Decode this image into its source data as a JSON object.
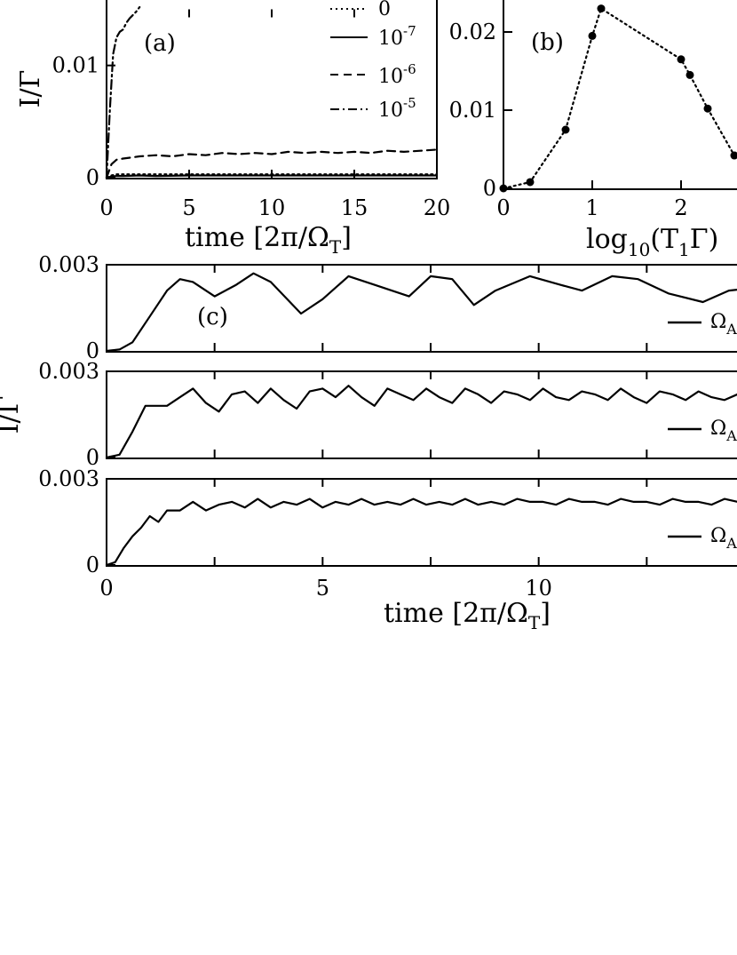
{
  "chart_data": [
    {
      "id": "a",
      "type": "line",
      "panel_label": "(a)",
      "xlabel": "time [2π/Ω_T]",
      "ylabel": "I/Γ",
      "xlim": [
        0,
        20
      ],
      "ylim": [
        0,
        0.015
      ],
      "x_ticks": [
        0,
        5,
        10,
        15,
        20
      ],
      "y_ticks": [
        0,
        0.01
      ],
      "legend_position": "top-right",
      "series": [
        {
          "name": "0",
          "dash": "dotted",
          "x": [
            0,
            0.3,
            0.6,
            1,
            2,
            3,
            5,
            8,
            10,
            12,
            15,
            18,
            20
          ],
          "y": [
            0,
            0.0002,
            0.0003,
            0.0003,
            0.0003,
            0.0003,
            0.0003,
            0.0003,
            0.0003,
            0.0003,
            0.0003,
            0.0003,
            0.0003
          ]
        },
        {
          "name": "10^-7",
          "dash": "solid",
          "x": [
            0,
            0.3,
            0.6,
            1,
            2,
            3,
            5,
            8,
            10,
            12,
            15,
            18,
            20
          ],
          "y": [
            0,
            0.0001,
            0.00015,
            0.00015,
            0.0002,
            0.00015,
            0.0002,
            0.0002,
            0.0002,
            0.0002,
            0.0002,
            0.0002,
            0.0002
          ]
        },
        {
          "name": "10^-6",
          "dash": "dashed",
          "x": [
            0,
            0.3,
            0.6,
            1,
            1.5,
            2,
            3,
            4,
            5,
            6,
            7,
            8,
            9,
            10,
            11,
            12,
            13,
            14,
            15,
            16,
            17,
            18,
            19,
            20
          ],
          "y": [
            0,
            0.0012,
            0.0016,
            0.0017,
            0.0018,
            0.0019,
            0.002,
            0.0019,
            0.0021,
            0.002,
            0.0022,
            0.0021,
            0.0022,
            0.0021,
            0.0023,
            0.0022,
            0.0023,
            0.0022,
            0.0023,
            0.0022,
            0.0024,
            0.0023,
            0.0024,
            0.0025
          ]
        },
        {
          "name": "10^-5",
          "dash": "dashdot",
          "x": [
            0,
            0.2,
            0.4,
            0.6,
            0.8,
            1.0,
            1.2,
            1.4,
            1.6,
            1.8,
            2.0
          ],
          "y": [
            0,
            0.006,
            0.011,
            0.0125,
            0.013,
            0.0132,
            0.0138,
            0.0142,
            0.0145,
            0.0148,
            0.0152
          ]
        }
      ]
    },
    {
      "id": "b",
      "type": "scatter",
      "panel_label": "(b)",
      "xlabel": "log₁₀(T₁Γ)",
      "ylabel": "",
      "xlim": [
        0,
        2.8
      ],
      "ylim": [
        0,
        0.03
      ],
      "x_ticks": [
        0,
        1,
        2
      ],
      "y_ticks": [
        0,
        0.01,
        0.02
      ],
      "series": [
        {
          "name": "",
          "dash": "dotted",
          "x": [
            0,
            0.3,
            0.7,
            1.0,
            1.1,
            2.0,
            2.1,
            2.3,
            2.6
          ],
          "y": [
            0,
            0.0008,
            0.0075,
            0.0195,
            0.023,
            0.0165,
            0.0145,
            0.0102,
            0.0042
          ]
        }
      ]
    },
    {
      "id": "c1",
      "type": "line",
      "panel_label": "(c)",
      "xlim": [
        0,
        15
      ],
      "ylim": [
        0,
        0.003
      ],
      "y_ticks": [
        0,
        0.003
      ],
      "legend": "Ω_A",
      "series": [
        {
          "name": "Ω_A",
          "x": [
            0,
            0.3,
            0.6,
            1.0,
            1.4,
            1.7,
            2.0,
            2.5,
            3.0,
            3.4,
            3.8,
            4.5,
            5.0,
            5.6,
            6.2,
            7.0,
            7.5,
            8.0,
            8.5,
            9.0,
            9.8,
            10.5,
            11.0,
            11.7,
            12.3,
            13.0,
            13.8,
            14.4,
            15.0
          ],
          "y": [
            0,
            5e-05,
            0.0003,
            0.0012,
            0.0021,
            0.0025,
            0.0024,
            0.0019,
            0.0023,
            0.0027,
            0.0024,
            0.0013,
            0.0018,
            0.0026,
            0.0023,
            0.0019,
            0.0026,
            0.0025,
            0.0016,
            0.0021,
            0.0026,
            0.0023,
            0.0021,
            0.0026,
            0.0025,
            0.002,
            0.0017,
            0.0021,
            0.0022
          ]
        }
      ]
    },
    {
      "id": "c2",
      "type": "line",
      "panel_label": "",
      "xlim": [
        0,
        15
      ],
      "ylim": [
        0,
        0.003
      ],
      "y_ticks": [
        0,
        0.003
      ],
      "legend": "Ω_A",
      "series": [
        {
          "name": "Ω_A",
          "x": [
            0,
            0.3,
            0.6,
            0.9,
            1.1,
            1.4,
            1.7,
            2.0,
            2.3,
            2.6,
            2.9,
            3.2,
            3.5,
            3.8,
            4.1,
            4.4,
            4.7,
            5.0,
            5.3,
            5.6,
            5.9,
            6.2,
            6.5,
            6.8,
            7.1,
            7.4,
            7.7,
            8.0,
            8.3,
            8.6,
            8.9,
            9.2,
            9.5,
            9.8,
            10.1,
            10.4,
            10.7,
            11.0,
            11.3,
            11.6,
            11.9,
            12.2,
            12.5,
            12.8,
            13.1,
            13.4,
            13.7,
            14.0,
            14.3,
            14.6,
            15.0
          ],
          "y": [
            0,
            0.0001,
            0.0009,
            0.0018,
            0.0018,
            0.0018,
            0.0021,
            0.0024,
            0.0019,
            0.0016,
            0.0022,
            0.0023,
            0.0019,
            0.0024,
            0.002,
            0.0017,
            0.0023,
            0.0024,
            0.0021,
            0.0025,
            0.0021,
            0.0018,
            0.0024,
            0.0022,
            0.002,
            0.0024,
            0.0021,
            0.0019,
            0.0024,
            0.0022,
            0.0019,
            0.0023,
            0.0022,
            0.002,
            0.0024,
            0.0021,
            0.002,
            0.0023,
            0.0022,
            0.002,
            0.0024,
            0.0021,
            0.0019,
            0.0023,
            0.0022,
            0.002,
            0.0023,
            0.0021,
            0.002,
            0.0022,
            0.0021
          ]
        }
      ]
    },
    {
      "id": "c3",
      "type": "line",
      "panel_label": "",
      "xlim": [
        0,
        15
      ],
      "ylim": [
        0,
        0.003
      ],
      "x_ticks": [
        0,
        5,
        10
      ],
      "y_ticks": [
        0,
        0.003
      ],
      "xlabel": "time [2π/Ω_T]",
      "legend": "Ω_A",
      "series": [
        {
          "name": "Ω_A",
          "x": [
            0,
            0.2,
            0.4,
            0.6,
            0.8,
            1.0,
            1.2,
            1.4,
            1.7,
            2.0,
            2.3,
            2.6,
            2.9,
            3.2,
            3.5,
            3.8,
            4.1,
            4.4,
            4.7,
            5.0,
            5.3,
            5.6,
            5.9,
            6.2,
            6.5,
            6.8,
            7.1,
            7.4,
            7.7,
            8.0,
            8.3,
            8.6,
            8.9,
            9.2,
            9.5,
            9.8,
            10.1,
            10.4,
            10.7,
            11.0,
            11.3,
            11.6,
            11.9,
            12.2,
            12.5,
            12.8,
            13.1,
            13.4,
            13.7,
            14.0,
            14.3,
            14.6,
            15.0
          ],
          "y": [
            0,
            0.0001,
            0.0006,
            0.001,
            0.0013,
            0.0017,
            0.0015,
            0.0019,
            0.0019,
            0.0022,
            0.0019,
            0.0021,
            0.0022,
            0.002,
            0.0023,
            0.002,
            0.0022,
            0.0021,
            0.0023,
            0.002,
            0.0022,
            0.0021,
            0.0023,
            0.0021,
            0.0022,
            0.0021,
            0.0023,
            0.0021,
            0.0022,
            0.0021,
            0.0023,
            0.0021,
            0.0022,
            0.0021,
            0.0023,
            0.0022,
            0.0022,
            0.0021,
            0.0023,
            0.0022,
            0.0022,
            0.0021,
            0.0023,
            0.0022,
            0.0022,
            0.0021,
            0.0023,
            0.0022,
            0.0022,
            0.0021,
            0.0023,
            0.0022,
            0.0023
          ]
        }
      ]
    }
  ],
  "labels": {
    "a_ylabel": "I/Γ",
    "a_xlabel": "time [2π/Ω",
    "a_xlabel_sub": "T",
    "a_xlabel_end": "]",
    "b_xlabel": "log",
    "b_xlabel_sub10": "10",
    "b_xlabel_mid": "(T",
    "b_xlabel_sub1": "1",
    "b_xlabel_end": "Γ)",
    "c_ylabel": "I/Γ",
    "c_xlabel": "time [2π/Ω",
    "c_xlabel_sub": "T",
    "c_xlabel_end": "]",
    "panel_a": "(a)",
    "panel_b": "(b)",
    "panel_c": "(c)",
    "leg0": "0",
    "leg1_base": "10",
    "leg1_exp": "-7",
    "leg2_base": "10",
    "leg2_exp": "-6",
    "leg3_base": "10",
    "leg3_exp": "-5",
    "omega_a": "Ω",
    "omega_a_sub": "A"
  }
}
